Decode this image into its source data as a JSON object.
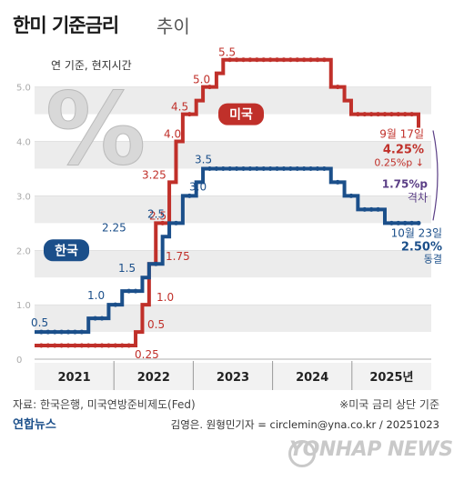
{
  "title": "한미 기준금리",
  "title_suffix": "추이",
  "subtitle": "연 기준, 현지시간",
  "source": "자료: 한국은행, 미국연방준비제도(Fed)",
  "note": "※미국 금리 상단 기준",
  "logo": "연합뉴스",
  "credit": "김영은. 원형민기자 = circlemin@yna.co.kr / 20251023",
  "watermark": "YONHAP NEWS",
  "colors": {
    "us": "#c0302a",
    "korea": "#1b4f8a",
    "gap": "#5b3f86",
    "bg_band": "#ececec",
    "grid": "#d6d6d6"
  },
  "chart_data": {
    "type": "line",
    "step": true,
    "ylim": [
      0,
      5.5
    ],
    "yticks": [
      "0",
      "1.0",
      "2.0",
      "3.0",
      "4.0",
      "5.0"
    ],
    "x_periods": [
      "2021",
      "2022",
      "2023",
      "2024",
      "2025년"
    ],
    "series": [
      {
        "name": "미국",
        "color": "#c0302a",
        "values": [
          0.25,
          0.25,
          0.25,
          0.25,
          0.25,
          0.25,
          0.25,
          0.25,
          0.25,
          0.25,
          0.25,
          0.25,
          0.25,
          0.25,
          0.25,
          0.5,
          1.0,
          1.75,
          2.5,
          2.5,
          3.25,
          4.0,
          4.5,
          4.5,
          4.75,
          5.0,
          5.0,
          5.25,
          5.5,
          5.5,
          5.5,
          5.5,
          5.5,
          5.5,
          5.5,
          5.5,
          5.5,
          5.5,
          5.5,
          5.5,
          5.5,
          5.5,
          5.5,
          5.5,
          5.0,
          5.0,
          4.75,
          4.5,
          4.5,
          4.5,
          4.5,
          4.5,
          4.5,
          4.5,
          4.5,
          4.5,
          4.5,
          4.25
        ],
        "labels": [
          "0.25",
          "0.5",
          "1.0",
          "1.75",
          "2.5",
          "3.25",
          "4.0",
          "4.5",
          "5.0",
          "5.5"
        ],
        "name_label": "미국"
      },
      {
        "name": "한국",
        "color": "#1b4f8a",
        "values": [
          0.5,
          0.5,
          0.5,
          0.5,
          0.5,
          0.5,
          0.5,
          0.5,
          0.75,
          0.75,
          0.75,
          1.0,
          1.0,
          1.25,
          1.25,
          1.25,
          1.5,
          1.75,
          1.75,
          2.25,
          2.5,
          2.5,
          3.0,
          3.0,
          3.25,
          3.5,
          3.5,
          3.5,
          3.5,
          3.5,
          3.5,
          3.5,
          3.5,
          3.5,
          3.5,
          3.5,
          3.5,
          3.5,
          3.5,
          3.5,
          3.5,
          3.5,
          3.5,
          3.5,
          3.25,
          3.25,
          3.0,
          3.0,
          2.75,
          2.75,
          2.75,
          2.75,
          2.5,
          2.5,
          2.5,
          2.5,
          2.5,
          2.5
        ],
        "labels": [
          "0.5",
          "1.0",
          "1.5",
          "2.25",
          "2.5",
          "3.0",
          "3.5"
        ],
        "name_label": "한국"
      }
    ],
    "annotations": {
      "us_date": "9월 17일",
      "us_rate": "4.25%",
      "us_change": "0.25%p ↓",
      "gap": "1.75%p",
      "gap_word": "격차",
      "kr_date": "10월 23일",
      "kr_rate": "2.50%",
      "kr_change": "동결"
    },
    "grid": true
  }
}
